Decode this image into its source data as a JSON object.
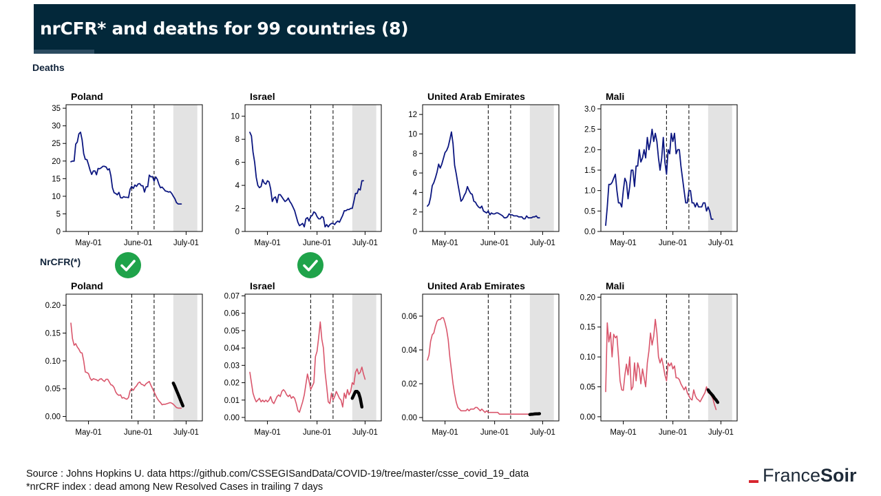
{
  "header": {
    "title": "nrCFR* and deaths for 99 countries (8)"
  },
  "sections": {
    "deaths_label": "Deaths",
    "nrcfr_label": "NrCFR(*)"
  },
  "checkmarks": [
    "Poland",
    "Israel"
  ],
  "footer": {
    "source": "Source : Johns Hopkins U. data https://github.com/CSSEGISandData/COVID-19/tree/master/csse_covid_19_data",
    "note": "*nrCRF index : dead among New Resolved  Cases in trailing 7 days"
  },
  "logo": {
    "part1": "France",
    "part2": "Soir"
  },
  "colors": {
    "deaths_line": "#0b1680",
    "nrcfr_line": "#d9556b",
    "trend_line": "#000000",
    "shade": "#e3e3e3",
    "banner": "#03283a",
    "check": "#1fa34a"
  },
  "chart_data": [
    {
      "type": "line",
      "panel": "deaths",
      "title": "Poland",
      "x_ticks": [
        "May-01",
        "June-01",
        "July-01"
      ],
      "ylim": [
        0,
        36
      ],
      "yticks": [
        0,
        5,
        10,
        15,
        20,
        25,
        30,
        35
      ],
      "ytick_labels": [
        "0",
        "5",
        "10",
        "15",
        "20",
        "25",
        "30",
        "35"
      ],
      "vlines": [
        "2020-05-28",
        "2020-06-11"
      ],
      "shaded": [
        "2020-06-23",
        "2020-07-08"
      ],
      "series": [
        {
          "x_start": "2020-04-20",
          "values": [
            19.8,
            20,
            20,
            24.8,
            25.4,
            27.7,
            28.2,
            26,
            22.1,
            20.5,
            20.4,
            19,
            17.4,
            16.2,
            17.2,
            17.2,
            16.1,
            17.9,
            17.8,
            18.1,
            18.5,
            18.5,
            18.3,
            17.5,
            17.8,
            15.8,
            12.4,
            11,
            10.8,
            10.4,
            11.1,
            9.6,
            9.5,
            9.9,
            9.7,
            9.7,
            9.6,
            12,
            12.8,
            12.2,
            13.2,
            12.8,
            13.5,
            13.6,
            13,
            13,
            11.2,
            12.7,
            12.7,
            16,
            15.5,
            15.6,
            14.3,
            15.5,
            14.8,
            13.4,
            12.4,
            12.6,
            12.1,
            11.5,
            11.4,
            11.2,
            11.3,
            10.8,
            10,
            9.3,
            8.2,
            7.8,
            7.8,
            7.8
          ]
        }
      ]
    },
    {
      "type": "line",
      "panel": "deaths",
      "title": "Israel",
      "x_ticks": [
        "May-01",
        "June-01",
        "July-01"
      ],
      "ylim": [
        0,
        11
      ],
      "yticks": [
        0,
        2,
        4,
        6,
        8,
        10
      ],
      "ytick_labels": [
        "0",
        "2",
        "4",
        "6",
        "8",
        "10"
      ],
      "vlines": [
        "2020-05-28",
        "2020-06-11"
      ],
      "shaded": [
        "2020-06-23",
        "2020-07-08"
      ],
      "series": [
        {
          "x_start": "2020-04-20",
          "values": [
            8.6,
            8.3,
            6.9,
            6,
            4.7,
            4,
            3.8,
            3.9,
            4.5,
            4.2,
            4.1,
            4.4,
            4.3,
            3.7,
            2.6,
            2.9,
            3,
            2.5,
            3.2,
            3.2,
            3,
            2.8,
            2.6,
            2.7,
            2.9,
            2.6,
            2.4,
            2.1,
            1.8,
            1.3,
            0.8,
            0.5,
            0.6,
            0.7,
            0.4,
            1.1,
            1.2,
            0.9,
            1.3,
            1.4,
            1.7,
            1.6,
            1.3,
            1.1,
            1.1,
            1.3,
            1.2,
            0.4,
            0.6,
            0.4,
            0.6,
            0.7,
            0.7,
            0.6,
            0.8,
            0.9,
            0.8,
            1.1,
            1.4,
            1.8,
            1.8,
            1.9,
            1.9,
            2,
            2,
            2.6,
            3.3,
            3.3,
            3.7,
            3.6,
            4.4,
            4.4
          ]
        }
      ]
    },
    {
      "type": "line",
      "panel": "deaths",
      "title": "United Arab Emirates",
      "x_ticks": [
        "May-01",
        "June-01",
        "July-01"
      ],
      "ylim": [
        0,
        13
      ],
      "yticks": [
        0,
        2,
        4,
        6,
        8,
        10,
        12
      ],
      "ytick_labels": [
        "0",
        "2",
        "4",
        "6",
        "8",
        "10",
        "12"
      ],
      "vlines": [
        "2020-05-28",
        "2020-06-11"
      ],
      "shaded": [
        "2020-06-23",
        "2020-07-08"
      ],
      "series": [
        {
          "x_start": "2020-04-20",
          "values": [
            2.6,
            2.8,
            3.5,
            4.7,
            5,
            5.5,
            6.1,
            6.9,
            6.5,
            6.9,
            7.5,
            8.1,
            8.3,
            8.7,
            9.4,
            10.2,
            9,
            6.8,
            5.9,
            4.9,
            4,
            3.1,
            3.3,
            3.7,
            4,
            4.6,
            4.2,
            3.9,
            3.8,
            3.1,
            3,
            2.7,
            2.5,
            2.4,
            2.6,
            2.1,
            2,
            1.9,
            2.1,
            1.7,
            1.9,
            1.8,
            1.8,
            1.9,
            1.9,
            1.8,
            1.7,
            1.6,
            1.4,
            1.4,
            1.5,
            1.8,
            1.7,
            1.7,
            1.6,
            1.6,
            1.6,
            1.5,
            1.5,
            1.5,
            1.3,
            1.3,
            1.6,
            1.4,
            1.4,
            1.4,
            1.5,
            1.5,
            1.6,
            1.4,
            1.4
          ]
        }
      ]
    },
    {
      "type": "line",
      "panel": "deaths",
      "title": "Mali",
      "x_ticks": [
        "May-01",
        "June-01",
        "July-01"
      ],
      "ylim": [
        0,
        3.1
      ],
      "yticks": [
        0,
        0.5,
        1,
        1.5,
        2,
        2.5,
        3
      ],
      "ytick_labels": [
        "0.0",
        "0.5",
        "1.0",
        "1.5",
        "2.0",
        "2.5",
        "3.0"
      ],
      "vlines": [
        "2020-05-28",
        "2020-06-11"
      ],
      "shaded": [
        "2020-06-23",
        "2020-07-08"
      ],
      "series": [
        {
          "x_start": "2020-04-20",
          "values": [
            0.15,
            0.6,
            1.15,
            1.15,
            1.2,
            1.3,
            1.4,
            1,
            0.7,
            0.7,
            0.6,
            1,
            1.3,
            1.2,
            0.8,
            1.1,
            1.5,
            1.5,
            1.1,
            1.6,
            1.6,
            2,
            1.7,
            1.8,
            2,
            1.8,
            2.3,
            2,
            2.2,
            2.5,
            2.2,
            2.4,
            2.2,
            1.8,
            1.5,
            1.8,
            2.3,
            1.7,
            1.4,
            2,
            1.9,
            2.4,
            2.2,
            2.4,
            1.9,
            2,
            2,
            1.6,
            1.3,
            1,
            0.7,
            0.7,
            1,
            1,
            0.7,
            0.7,
            0.6,
            0.7,
            0.6,
            0.6,
            0.6,
            0.7,
            0.7,
            0.5,
            0.6,
            0.5,
            0.3,
            0.3
          ]
        }
      ]
    },
    {
      "type": "line",
      "panel": "nrcfr",
      "title": "Poland",
      "x_ticks": [
        "May-01",
        "June-01",
        "July-01"
      ],
      "ylim": [
        -0.008,
        0.22
      ],
      "yticks": [
        0,
        0.05,
        0.1,
        0.15,
        0.2
      ],
      "ytick_labels": [
        "0.00",
        "0.05",
        "0.10",
        "0.15",
        "0.20"
      ],
      "vlines": [
        "2020-05-28",
        "2020-06-11"
      ],
      "shaded": [
        "2020-06-23",
        "2020-07-08"
      ],
      "series": [
        {
          "x_start": "2020-04-20",
          "values": [
            0.168,
            0.14,
            0.128,
            0.131,
            0.125,
            0.121,
            0.115,
            0.114,
            0.1,
            0.08,
            0.079,
            0.077,
            0.069,
            0.065,
            0.068,
            0.067,
            0.066,
            0.064,
            0.067,
            0.068,
            0.065,
            0.063,
            0.067,
            0.067,
            0.062,
            0.057,
            0.056,
            0.052,
            0.044,
            0.04,
            0.038,
            0.039,
            0.033,
            0.034,
            0.032,
            0.031,
            0.034,
            0.046,
            0.05,
            0.047,
            0.052,
            0.055,
            0.06,
            0.062,
            0.058,
            0.057,
            0.055,
            0.059,
            0.061,
            0.063,
            0.056,
            0.05,
            0.044,
            0.038,
            0.032,
            0.028,
            0.025,
            0.021,
            0.022,
            0.022,
            0.023,
            0.024,
            0.025,
            0.024,
            0.022,
            0.019,
            0.016,
            0.015,
            0.015,
            0.015
          ]
        },
        {
          "name": "trend",
          "x_start": "2020-06-23",
          "values": [
            0.06,
            0.054,
            0.047,
            0.04,
            0.033,
            0.026,
            0.019
          ]
        }
      ]
    },
    {
      "type": "line",
      "panel": "nrcfr",
      "title": "Israel",
      "x_ticks": [
        "May-01",
        "June-01",
        "July-01"
      ],
      "ylim": [
        -0.002,
        0.071
      ],
      "yticks": [
        0,
        0.01,
        0.02,
        0.03,
        0.04,
        0.05,
        0.06,
        0.07
      ],
      "ytick_labels": [
        "0.00",
        "0.01",
        "0.02",
        "0.03",
        "0.04",
        "0.05",
        "0.06",
        "0.07"
      ],
      "vlines": [
        "2020-05-28",
        "2020-06-11"
      ],
      "shaded": [
        "2020-06-23",
        "2020-07-08"
      ],
      "series": [
        {
          "x_start": "2020-04-20",
          "values": [
            0.026,
            0.02,
            0.014,
            0.011,
            0.009,
            0.01,
            0.011,
            0.009,
            0.01,
            0.009,
            0.01,
            0.009,
            0.01,
            0.012,
            0.009,
            0.008,
            0.01,
            0.012,
            0.013,
            0.012,
            0.015,
            0.016,
            0.015,
            0.013,
            0.012,
            0.013,
            0.011,
            0.012,
            0.011,
            0.008,
            0.004,
            0.003,
            0.006,
            0.009,
            0.013,
            0.019,
            0.025,
            0.021,
            0.016,
            0.018,
            0.02,
            0.035,
            0.038,
            0.046,
            0.055,
            0.045,
            0.04,
            0.026,
            0.018,
            0.009,
            0.008,
            0.014,
            0.01,
            0.012,
            0.015,
            0.013,
            0.011,
            0.01,
            0.006,
            0.014,
            0.011,
            0.016,
            0.013,
            0.015,
            0.02,
            0.019,
            0.026,
            0.028,
            0.025,
            0.026,
            0.029,
            0.025,
            0.022
          ]
        },
        {
          "name": "trend",
          "x_start": "2020-06-23",
          "values": [
            0.011,
            0.013,
            0.015,
            0.015,
            0.014,
            0.011,
            0.006
          ]
        }
      ]
    },
    {
      "type": "line",
      "panel": "nrcfr",
      "title": "United Arab Emirates",
      "x_ticks": [
        "May-01",
        "June-01",
        "July-01"
      ],
      "ylim": [
        -0.002,
        0.073
      ],
      "yticks": [
        0,
        0.02,
        0.04,
        0.06
      ],
      "ytick_labels": [
        "0.00",
        "0.02",
        "0.04",
        "0.06"
      ],
      "vlines": [
        "2020-05-28",
        "2020-06-11"
      ],
      "shaded": [
        "2020-06-23",
        "2020-07-08"
      ],
      "series": [
        {
          "x_start": "2020-04-20",
          "values": [
            0.034,
            0.037,
            0.045,
            0.049,
            0.05,
            0.054,
            0.057,
            0.058,
            0.058,
            0.059,
            0.059,
            0.056,
            0.052,
            0.046,
            0.036,
            0.028,
            0.02,
            0.014,
            0.009,
            0.006,
            0.005,
            0.004,
            0.004,
            0.004,
            0.004,
            0.005,
            0.004,
            0.005,
            0.005,
            0.005,
            0.006,
            0.006,
            0.005,
            0.004,
            0.005,
            0.004,
            0.003,
            0.004,
            0.003,
            0.003,
            0.003,
            0.003,
            0.003,
            0.003,
            0.003,
            0.002,
            0.002,
            0.002,
            0.002,
            0.002,
            0.002,
            0.002,
            0.002,
            0.002,
            0.002,
            0.002,
            0.002,
            0.002,
            0.002,
            0.002,
            0.002,
            0.002,
            0.002,
            0.002,
            0.002,
            0.002,
            0.002,
            0.002,
            0.002,
            0.002,
            0.002
          ]
        },
        {
          "name": "trend",
          "x_start": "2020-06-23",
          "values": [
            0.0018,
            0.0019,
            0.002,
            0.0021,
            0.0022,
            0.0022,
            0.0023
          ]
        }
      ]
    },
    {
      "type": "line",
      "panel": "nrcfr",
      "title": "Mali",
      "x_ticks": [
        "May-01",
        "June-01",
        "July-01"
      ],
      "ylim": [
        -0.007,
        0.205
      ],
      "yticks": [
        0,
        0.05,
        0.1,
        0.15,
        0.2
      ],
      "ytick_labels": [
        "0.00",
        "0.05",
        "0.10",
        "0.15",
        "0.20"
      ],
      "vlines": [
        "2020-05-28",
        "2020-06-11"
      ],
      "shaded": [
        "2020-06-23",
        "2020-07-08"
      ],
      "series": [
        {
          "x_start": "2020-04-20",
          "values": [
            0.042,
            0.157,
            0.125,
            0.141,
            0.1,
            0.138,
            0.132,
            0.135,
            0.1,
            0.06,
            0.045,
            0.044,
            0.07,
            0.088,
            0.07,
            0.1,
            0.045,
            0.05,
            0.09,
            0.06,
            0.09,
            0.08,
            0.055,
            0.08,
            0.065,
            0.05,
            0.09,
            0.11,
            0.14,
            0.12,
            0.135,
            0.163,
            0.14,
            0.1,
            0.09,
            0.098,
            0.085,
            0.07,
            0.06,
            0.09,
            0.085,
            0.09,
            0.08,
            0.085,
            0.065,
            0.065,
            0.062,
            0.055,
            0.05,
            0.045,
            0.05,
            0.04,
            0.035,
            0.03,
            0.028,
            0.045,
            0.035,
            0.03,
            0.028,
            0.025,
            0.03,
            0.035,
            0.04,
            0.05,
            0.04,
            0.04,
            0.035,
            0.03,
            0.02,
            0.012
          ]
        },
        {
          "name": "trend",
          "x_start": "2020-06-23",
          "values": [
            0.045,
            0.041,
            0.038,
            0.035,
            0.031,
            0.028,
            0.024
          ]
        }
      ]
    }
  ]
}
